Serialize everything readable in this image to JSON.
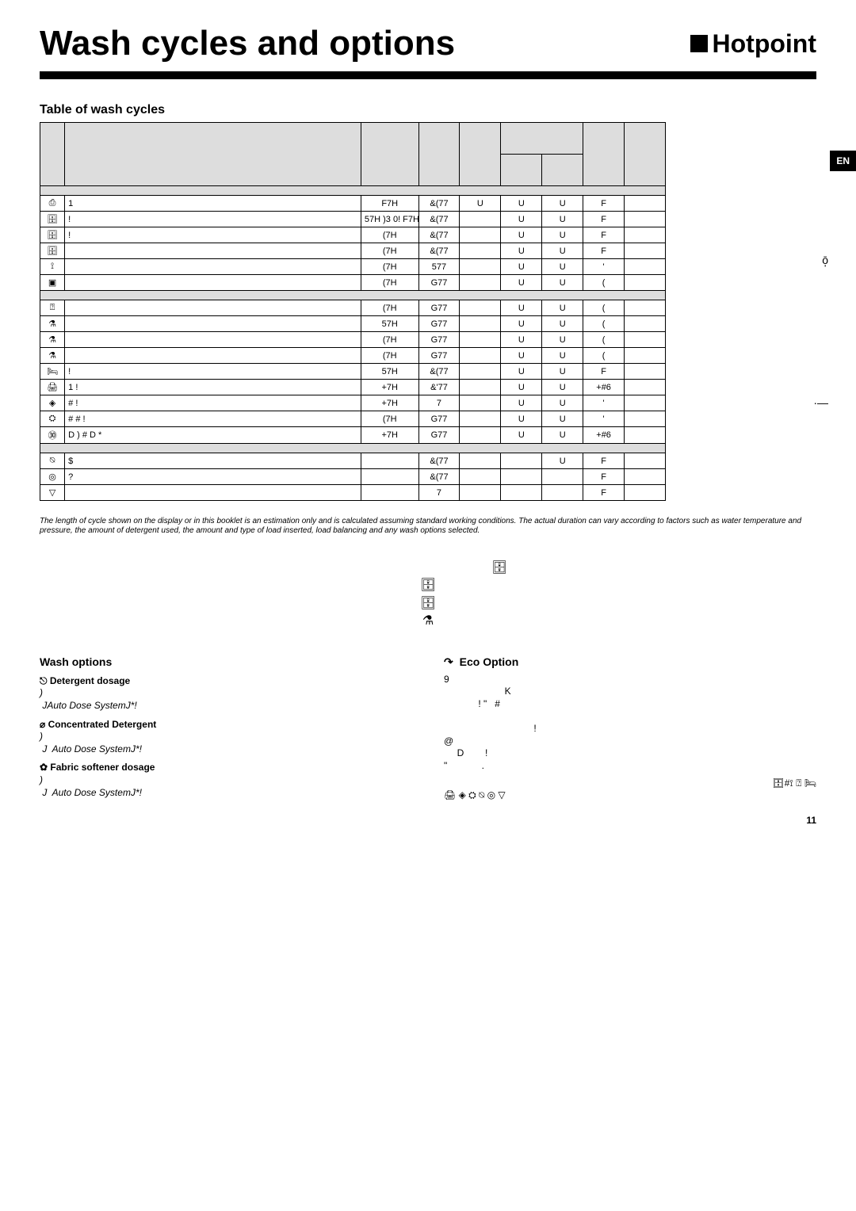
{
  "header": {
    "title": "Wash cycles and options",
    "brand": "Hotpoint"
  },
  "lang_badge": "EN",
  "table": {
    "title": "Table of wash cycles",
    "header_cells": [
      "",
      "",
      "",
      "",
      "",
      "",
      "",
      "",
      ""
    ],
    "sub_header_cells": [
      "",
      ""
    ],
    "sections": [
      "",
      "",
      ""
    ],
    "rows": [
      {
        "icon": "⎙",
        "desc": "1",
        "c": [
          "F7H",
          "&(77",
          "U",
          "U",
          "U",
          "F"
        ]
      },
      {
        "icon": "🗄",
        "desc": "!",
        "c": [
          "57H )3 0! F7H*",
          "&(77",
          "",
          "U",
          "U",
          "F"
        ]
      },
      {
        "icon": "🗄",
        "desc": "!",
        "c": [
          "(7H",
          "&(77",
          "",
          "U",
          "U",
          "F"
        ]
      },
      {
        "icon": "🗄",
        "desc": "",
        "c": [
          "(7H",
          "&(77",
          "",
          "U",
          "U",
          "F"
        ]
      },
      {
        "icon": "⟟",
        "desc": "",
        "c": [
          "(7H",
          "577",
          "",
          "U",
          "U",
          "'"
        ]
      },
      {
        "icon": "▣",
        "desc": "",
        "c": [
          "(7H",
          "G77",
          "",
          "U",
          "U",
          "("
        ]
      },
      {
        "sep": 2
      },
      {
        "icon": "⍰",
        "desc": "",
        "c": [
          "(7H",
          "G77",
          "",
          "U",
          "U",
          "("
        ]
      },
      {
        "icon": "⚗",
        "desc": "",
        "c": [
          "57H",
          "G77",
          "",
          "U",
          "U",
          "("
        ]
      },
      {
        "icon": "⚗",
        "desc": "",
        "c": [
          "(7H",
          "G77",
          "",
          "U",
          "U",
          "("
        ]
      },
      {
        "icon": "⚗",
        "desc": "",
        "c": [
          "(7H",
          "G77",
          "",
          "U",
          "U",
          "("
        ]
      },
      {
        "icon": "🛏",
        "desc": "!",
        "c": [
          "57H",
          "&(77",
          "",
          "U",
          "U",
          "F"
        ]
      },
      {
        "icon": "🖨",
        "desc": "1   !",
        "c": [
          "+7H",
          "&'77",
          "",
          "U",
          "U",
          "+#6"
        ]
      },
      {
        "icon": "◈",
        "desc": "#   !",
        "c": [
          "+7H",
          "7",
          "",
          "U",
          "U",
          "'"
        ]
      },
      {
        "icon": "⛭",
        "desc": "#   # !",
        "c": [
          "(7H",
          "G77",
          "",
          "U",
          "U",
          "'"
        ]
      },
      {
        "icon": "㉚",
        "desc": "D   )  #   D   *",
        "c": [
          "+7H",
          "G77",
          "",
          "U",
          "U",
          "+#6"
        ]
      },
      {
        "sep": 3
      },
      {
        "icon": "⍉",
        "desc": "$",
        "c": [
          "",
          "&(77",
          "",
          "",
          "U",
          "F"
        ]
      },
      {
        "icon": "◎",
        "desc": "?",
        "c": [
          "",
          "&(77",
          "",
          "",
          "",
          "F"
        ]
      },
      {
        "icon": "▽",
        "desc": "",
        "c": [
          "",
          "7",
          "",
          "",
          "",
          "F"
        ]
      }
    ]
  },
  "disclaimer": "The length of cycle shown on the display or in this booklet is an estimation only and is calculated assuming standard working conditions. The actual duration can vary according to factors such as water temperature and pressure, the amount of detergent used, the amount and type of load inserted, load balancing and any wash options selected.",
  "mid_icons": {
    "right": "🗄",
    "lines": [
      "🗄",
      "🗄",
      "⚗"
    ]
  },
  "options": {
    "left_title": "Wash options",
    "left_items": [
      {
        "icon": "⎋",
        "name": "Detergent dosage",
        "body": ")\n JAuto Dose SystemJ*!"
      },
      {
        "icon": "⌀",
        "name": "Concentrated Detergent",
        "body": ")\n J  Auto Dose SystemJ*!"
      },
      {
        "icon": "✿",
        "name": "Fabric softener dosage",
        "body": ")\n J  Auto Dose SystemJ*!"
      }
    ],
    "right_title": "Eco Option",
    "right_icon": "↷",
    "right_body": "9\n                       K\n             ! \"   #\n\n                                  !\n@\n     D        !\n\"             .",
    "right_icon_row_label": "🗄#⟟ ⍰ 🛏",
    "right_small_icons": "🖨 ◈ ⛭ ⍉ ◎ ▽"
  },
  "page_number": "11",
  "side_glyphs": {
    "g1": "ō̦",
    "g2": "·—"
  }
}
